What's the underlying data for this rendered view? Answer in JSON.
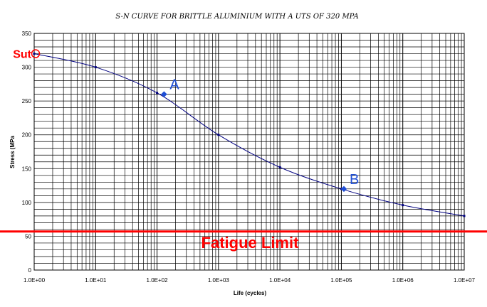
{
  "chart_data": {
    "type": "line",
    "title": "S-N CURVE FOR BRITTLE ALUMINIUM WITH A UTS OF 320 MPA",
    "xlabel": "Life (cycles)",
    "ylabel": "Stress (MPa",
    "xscale": "log",
    "xlim": [
      1,
      10000000
    ],
    "ylim": [
      0,
      350
    ],
    "xtick_labels": [
      "1.0E+00",
      "1.0E+01",
      "1.0E+02",
      "1.0E+03",
      "1.0E+04",
      "1.0E+05",
      "1.0E+06",
      "1.0E+07"
    ],
    "ytick_labels": [
      "0",
      "50",
      "100",
      "150",
      "200",
      "250",
      "300",
      "350"
    ],
    "grid": true,
    "series": [
      {
        "x": [
          1,
          10,
          100,
          1000,
          10000,
          100000,
          1000000,
          10000000
        ],
        "y": [
          320,
          300,
          262,
          200,
          152,
          120,
          96,
          80
        ],
        "color": "#000080"
      }
    ],
    "highlight_points": [
      {
        "label": "A",
        "x": 130,
        "y": 260,
        "color": "#1f4fd6"
      },
      {
        "label": "B",
        "x": 110000,
        "y": 120,
        "color": "#1f4fd6"
      }
    ],
    "sut_marker": {
      "label": "Sut",
      "x": 1,
      "y": 320,
      "color": "#ff0000"
    },
    "fatigue_limit": {
      "label": "Fatigue Limit",
      "y": 78,
      "color": "#ff0000"
    }
  }
}
